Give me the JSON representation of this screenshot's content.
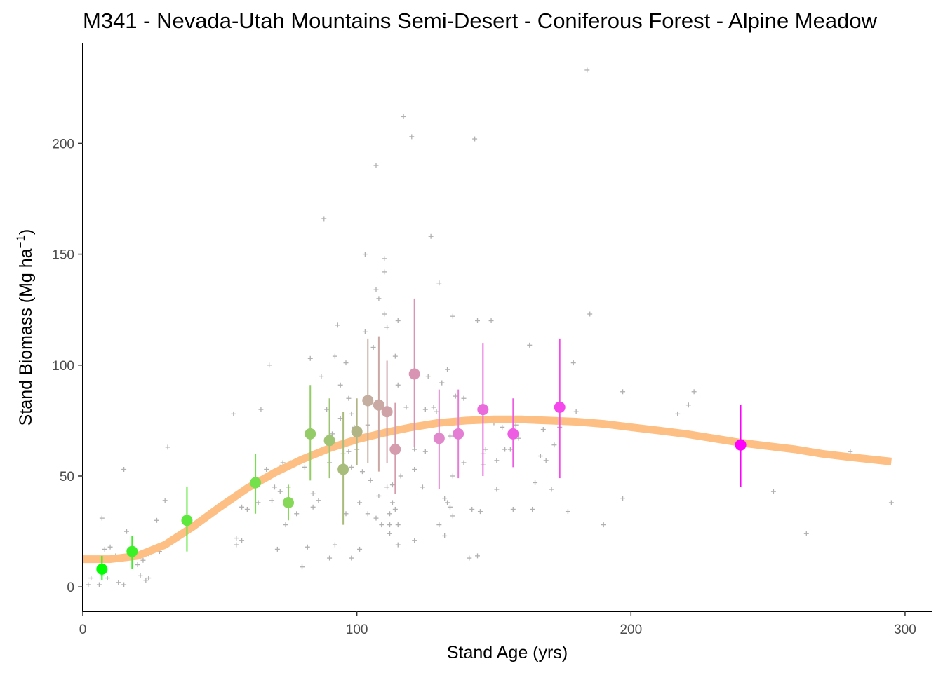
{
  "chart_data": {
    "type": "scatter",
    "title": "M341 - Nevada-Utah Mountains Semi-Desert - Coniferous Forest - Alpine Meadow",
    "xlabel": "Stand Age (yrs)",
    "ylabel": "Stand Biomass (Mg ha",
    "ylabel_sup": "−1",
    "ylabel_close": ")",
    "xlim": [
      0,
      310
    ],
    "ylim": [
      -11,
      245
    ],
    "x_ticks": [
      0,
      100,
      200,
      300
    ],
    "y_ticks": [
      0,
      50,
      100,
      150,
      200
    ],
    "grid": false,
    "colors": {
      "fit_line": "#fdbf83",
      "raw_points": "#b0b0b0",
      "mean_gradient_start": "#00ff00",
      "mean_gradient_end": "#ff00ff"
    },
    "fit_curve": {
      "x": [
        0,
        10,
        20,
        30,
        40,
        50,
        60,
        70,
        80,
        90,
        100,
        110,
        120,
        130,
        140,
        150,
        160,
        170,
        180,
        190,
        200,
        210,
        220,
        230,
        240,
        250,
        260,
        270,
        280,
        295
      ],
      "y": [
        12.5,
        12.5,
        14,
        19,
        27,
        36,
        44.5,
        51.5,
        57.5,
        62.5,
        66.5,
        69.5,
        72,
        74,
        75,
        75.5,
        75.5,
        75,
        74.5,
        73.5,
        72,
        70.5,
        69,
        67,
        65,
        63.5,
        62,
        60,
        58.5,
        56.5
      ]
    },
    "means": [
      {
        "x": 7,
        "y": 8,
        "lo": 3,
        "hi": 14,
        "color": "#00ff00"
      },
      {
        "x": 18,
        "y": 16,
        "lo": 8,
        "hi": 23,
        "color": "#3cf028"
      },
      {
        "x": 38,
        "y": 30,
        "lo": 16,
        "hi": 45,
        "color": "#5ce83c"
      },
      {
        "x": 63,
        "y": 47,
        "lo": 33,
        "hi": 60,
        "color": "#74e04c"
      },
      {
        "x": 75,
        "y": 38,
        "lo": 30,
        "hi": 46,
        "color": "#86d858"
      },
      {
        "x": 83,
        "y": 69,
        "lo": 48,
        "hi": 91,
        "color": "#94cc68"
      },
      {
        "x": 90,
        "y": 66,
        "lo": 49,
        "hi": 85,
        "color": "#9fc474"
      },
      {
        "x": 95,
        "y": 53,
        "lo": 28,
        "hi": 79,
        "color": "#a8bc7c"
      },
      {
        "x": 100,
        "y": 70,
        "lo": 55,
        "hi": 85,
        "color": "#b1b484"
      },
      {
        "x": 104,
        "y": 84,
        "lo": 56,
        "hi": 112,
        "color": "#c4aea0"
      },
      {
        "x": 108,
        "y": 82,
        "lo": 52,
        "hi": 113,
        "color": "#caa8a4"
      },
      {
        "x": 111,
        "y": 79,
        "lo": 56,
        "hi": 102,
        "color": "#cfa2a8"
      },
      {
        "x": 114,
        "y": 62,
        "lo": 42,
        "hi": 83,
        "color": "#d49cac"
      },
      {
        "x": 121,
        "y": 96,
        "lo": 63,
        "hi": 130,
        "color": "#d994b4"
      },
      {
        "x": 130,
        "y": 67,
        "lo": 44,
        "hi": 89,
        "color": "#e188cc"
      },
      {
        "x": 137,
        "y": 69,
        "lo": 49,
        "hi": 89,
        "color": "#e47ed4"
      },
      {
        "x": 146,
        "y": 80,
        "lo": 50,
        "hi": 110,
        "color": "#ea6cdc"
      },
      {
        "x": 157,
        "y": 69,
        "lo": 54,
        "hi": 85,
        "color": "#ee5ce4"
      },
      {
        "x": 174,
        "y": 81,
        "lo": 49,
        "hi": 112,
        "color": "#f448ec"
      },
      {
        "x": 240,
        "y": 64,
        "lo": 45,
        "hi": 82,
        "color": "#ff00ff"
      }
    ],
    "raw_points": [
      [
        2,
        1
      ],
      [
        3,
        4
      ],
      [
        6,
        1
      ],
      [
        7,
        31
      ],
      [
        7,
        5
      ],
      [
        8,
        17
      ],
      [
        9,
        4
      ],
      [
        10,
        18
      ],
      [
        12,
        14
      ],
      [
        13,
        2
      ],
      [
        15,
        1
      ],
      [
        15,
        53
      ],
      [
        16,
        25
      ],
      [
        17,
        17
      ],
      [
        19,
        14
      ],
      [
        20,
        10
      ],
      [
        21,
        5
      ],
      [
        22,
        12
      ],
      [
        23,
        3
      ],
      [
        24,
        4
      ],
      [
        24,
        15
      ],
      [
        27,
        30
      ],
      [
        28,
        16
      ],
      [
        30,
        39
      ],
      [
        31,
        63
      ],
      [
        55,
        78
      ],
      [
        56,
        22
      ],
      [
        56,
        19
      ],
      [
        58,
        21
      ],
      [
        58,
        36
      ],
      [
        60,
        35
      ],
      [
        62,
        46
      ],
      [
        64,
        38
      ],
      [
        65,
        80
      ],
      [
        67,
        53
      ],
      [
        68,
        100
      ],
      [
        69,
        39
      ],
      [
        70,
        45
      ],
      [
        71,
        17
      ],
      [
        72,
        43
      ],
      [
        72,
        54
      ],
      [
        73,
        56
      ],
      [
        74,
        28
      ],
      [
        75,
        45
      ],
      [
        76,
        56
      ],
      [
        78,
        33
      ],
      [
        80,
        9
      ],
      [
        81,
        54
      ],
      [
        82,
        68
      ],
      [
        82,
        18
      ],
      [
        83,
        103
      ],
      [
        84,
        42
      ],
      [
        84,
        36
      ],
      [
        85,
        60
      ],
      [
        86,
        39
      ],
      [
        87,
        95
      ],
      [
        88,
        166
      ],
      [
        89,
        80
      ],
      [
        90,
        13
      ],
      [
        90,
        56
      ],
      [
        91,
        69
      ],
      [
        92,
        19
      ],
      [
        92,
        104
      ],
      [
        93,
        118
      ],
      [
        94,
        91
      ],
      [
        94,
        76
      ],
      [
        95,
        60
      ],
      [
        96,
        101
      ],
      [
        96,
        33
      ],
      [
        97,
        85
      ],
      [
        97,
        61
      ],
      [
        98,
        78
      ],
      [
        98,
        54
      ],
      [
        98,
        13
      ],
      [
        99,
        72
      ],
      [
        100,
        62
      ],
      [
        101,
        38
      ],
      [
        101,
        17
      ],
      [
        102,
        52
      ],
      [
        103,
        150
      ],
      [
        103,
        115
      ],
      [
        104,
        73
      ],
      [
        104,
        33
      ],
      [
        105,
        48
      ],
      [
        106,
        108
      ],
      [
        107,
        190
      ],
      [
        107,
        134
      ],
      [
        107,
        31
      ],
      [
        108,
        130
      ],
      [
        108,
        41
      ],
      [
        109,
        28
      ],
      [
        110,
        148
      ],
      [
        110,
        123
      ],
      [
        110,
        142
      ],
      [
        111,
        117
      ],
      [
        111,
        45
      ],
      [
        112,
        28
      ],
      [
        112,
        33
      ],
      [
        112,
        24
      ],
      [
        113,
        46
      ],
      [
        113,
        38
      ],
      [
        114,
        104
      ],
      [
        114,
        35
      ],
      [
        115,
        120
      ],
      [
        115,
        28
      ],
      [
        115,
        19
      ],
      [
        115,
        91
      ],
      [
        116,
        50
      ],
      [
        117,
        212
      ],
      [
        118,
        81
      ],
      [
        120,
        203
      ],
      [
        121,
        62
      ],
      [
        121,
        53
      ],
      [
        121,
        21
      ],
      [
        124,
        45
      ],
      [
        125,
        80
      ],
      [
        125,
        61
      ],
      [
        126,
        95
      ],
      [
        127,
        158
      ],
      [
        128,
        81
      ],
      [
        129,
        79
      ],
      [
        130,
        137
      ],
      [
        130,
        28
      ],
      [
        131,
        92
      ],
      [
        131,
        92
      ],
      [
        132,
        40
      ],
      [
        132,
        23
      ],
      [
        133,
        98
      ],
      [
        133,
        38
      ],
      [
        134,
        68
      ],
      [
        134,
        36
      ],
      [
        135,
        50
      ],
      [
        135,
        32
      ],
      [
        135,
        122
      ],
      [
        136,
        86
      ],
      [
        139,
        85
      ],
      [
        139,
        56
      ],
      [
        141,
        13
      ],
      [
        142,
        35
      ],
      [
        143,
        202
      ],
      [
        144,
        120
      ],
      [
        144,
        14
      ],
      [
        145,
        76
      ],
      [
        145,
        34
      ],
      [
        146,
        60
      ],
      [
        146,
        55
      ],
      [
        147,
        62
      ],
      [
        149,
        120
      ],
      [
        150,
        74
      ],
      [
        151,
        44
      ],
      [
        151,
        57
      ],
      [
        153,
        72
      ],
      [
        154,
        62
      ],
      [
        156,
        62
      ],
      [
        157,
        35
      ],
      [
        158,
        73
      ],
      [
        159,
        67
      ],
      [
        163,
        109
      ],
      [
        164,
        35
      ],
      [
        165,
        47
      ],
      [
        167,
        59
      ],
      [
        168,
        71
      ],
      [
        169,
        57
      ],
      [
        171,
        44
      ],
      [
        172,
        64
      ],
      [
        174,
        72
      ],
      [
        177,
        34
      ],
      [
        179,
        101
      ],
      [
        180,
        79
      ],
      [
        184,
        233
      ],
      [
        185,
        123
      ],
      [
        190,
        28
      ],
      [
        197,
        88
      ],
      [
        197,
        40
      ],
      [
        217,
        78
      ],
      [
        221,
        82
      ],
      [
        223,
        88
      ],
      [
        252,
        43
      ],
      [
        264,
        24
      ],
      [
        280,
        61
      ],
      [
        295,
        38
      ]
    ]
  }
}
